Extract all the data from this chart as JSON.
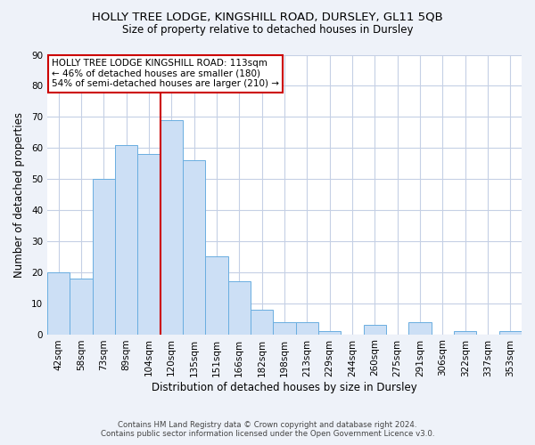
{
  "title": "HOLLY TREE LODGE, KINGSHILL ROAD, DURSLEY, GL11 5QB",
  "subtitle": "Size of property relative to detached houses in Dursley",
  "xlabel": "Distribution of detached houses by size in Dursley",
  "ylabel": "Number of detached properties",
  "bar_labels": [
    "42sqm",
    "58sqm",
    "73sqm",
    "89sqm",
    "104sqm",
    "120sqm",
    "135sqm",
    "151sqm",
    "166sqm",
    "182sqm",
    "198sqm",
    "213sqm",
    "229sqm",
    "244sqm",
    "260sqm",
    "275sqm",
    "291sqm",
    "306sqm",
    "322sqm",
    "337sqm",
    "353sqm"
  ],
  "bar_values": [
    20,
    18,
    50,
    61,
    58,
    69,
    56,
    25,
    17,
    8,
    4,
    4,
    1,
    0,
    3,
    0,
    4,
    0,
    1,
    0,
    1
  ],
  "bar_color": "#ccdff5",
  "bar_edge_color": "#6aaee0",
  "vline_x_idx": 5,
  "vline_color": "#cc0000",
  "ylim": [
    0,
    90
  ],
  "yticks": [
    0,
    10,
    20,
    30,
    40,
    50,
    60,
    70,
    80,
    90
  ],
  "annotation_line1": "HOLLY TREE LODGE KINGSHILL ROAD: 113sqm",
  "annotation_line2": "← 46% of detached houses are smaller (180)",
  "annotation_line3": "54% of semi-detached houses are larger (210) →",
  "footer_line1": "Contains HM Land Registry data © Crown copyright and database right 2024.",
  "footer_line2": "Contains public sector information licensed under the Open Government Licence v3.0.",
  "bg_color": "#eef2f9",
  "plot_bg_color": "#ffffff",
  "grid_color": "#c5d0e5",
  "title_fontsize": 9.5,
  "subtitle_fontsize": 8.5,
  "axis_label_fontsize": 8.5,
  "tick_fontsize": 7.5,
  "annot_fontsize": 7.5,
  "footer_fontsize": 6.2
}
